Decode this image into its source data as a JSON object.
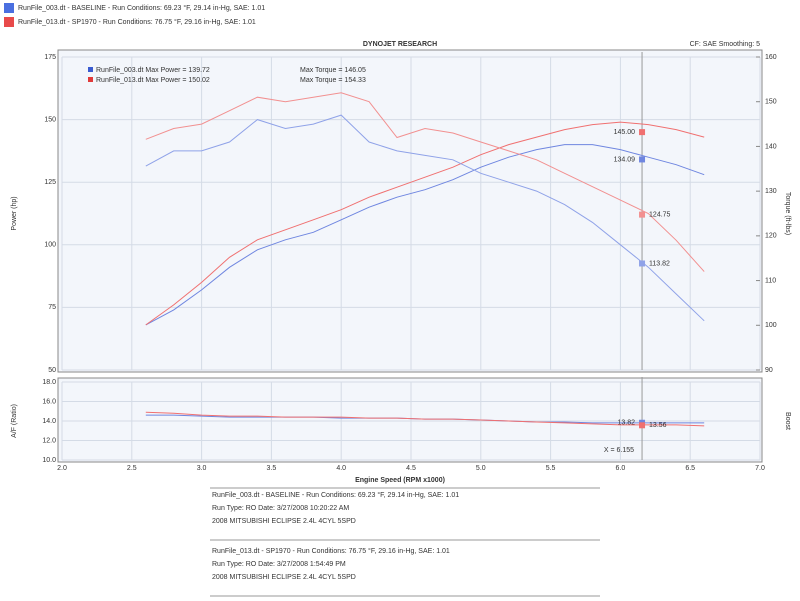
{
  "header": {
    "runs": [
      {
        "color": "#4a6fe0",
        "text": "RunFile_003.dt - BASELINE  -  Run Conditions: 69.23 °F, 29.14 in-Hg, SAE: 1.01"
      },
      {
        "color": "#e84a4a",
        "text": "RunFile_013.dt - SP1970  -  Run Conditions: 76.75 °F, 29.16 in-Hg, SAE: 1.01"
      }
    ]
  },
  "chart_data": [
    {
      "type": "line",
      "title": "DYNOJET RESEARCH",
      "subtitle": "CF: SAE  Smoothing: 5",
      "y_label": "Power (hp)",
      "y2_label": "Torque (ft-lbs)",
      "x": [
        2.6,
        2.8,
        3.0,
        3.2,
        3.4,
        3.6,
        3.8,
        4.0,
        4.2,
        4.4,
        4.6,
        4.8,
        5.0,
        5.2,
        5.4,
        5.6,
        5.8,
        6.0,
        6.2,
        6.4,
        6.6
      ],
      "xlim": [
        2,
        7
      ],
      "ylim": [
        50,
        175
      ],
      "yticks": [
        50,
        75,
        100,
        125,
        150,
        175
      ],
      "y2lim": [
        90,
        160
      ],
      "y2ticks": [
        90,
        100,
        110,
        120,
        130,
        140,
        150,
        160
      ],
      "grid": true,
      "cursor_x": 6.155,
      "legend": [
        {
          "color": "#3a5bd0",
          "power": "RunFile_003.dt Max Power = 139.72",
          "torque": "Max Torque = 146.05"
        },
        {
          "color": "#e03a3a",
          "power": "RunFile_013.dt Max Power = 150.02",
          "torque": "Max Torque = 154.33"
        }
      ],
      "series": [
        {
          "color": "#6f86e0",
          "values": [
            68,
            74,
            82,
            91,
            98,
            102,
            105,
            110,
            115,
            119,
            122,
            126,
            131,
            135,
            138,
            140,
            140,
            138,
            135,
            132,
            128
          ],
          "cursor_value": 134.09
        },
        {
          "color": "#f07070",
          "values": [
            68,
            76,
            85,
            95,
            102,
            106,
            110,
            114,
            119,
            123,
            127,
            131,
            136,
            140,
            143,
            146,
            148,
            149,
            148,
            146,
            143
          ],
          "cursor_value": 145,
          "cursor_label": "145.00"
        },
        {
          "color": "#8fa2e8",
          "axis": "y2",
          "values": [
            135.6,
            139,
            139,
            141,
            146,
            144,
            145,
            147,
            141,
            139,
            138,
            137,
            134,
            132,
            130,
            127,
            123,
            118,
            113,
            107,
            101
          ],
          "cursor_value": 113.82
        },
        {
          "color": "#f29090",
          "axis": "y2",
          "values": [
            141.6,
            144,
            145,
            148,
            151,
            150,
            151,
            152,
            150,
            142,
            144,
            143,
            141,
            139,
            137,
            134,
            131,
            128,
            125,
            119,
            112
          ],
          "cursor_value": 124.75
        }
      ]
    },
    {
      "type": "line",
      "x_label": "Engine Speed (RPM x1000)",
      "y_label": "A/F (Ratio)",
      "y2_label": "Boost",
      "x": [
        2.6,
        2.8,
        3.0,
        3.2,
        3.4,
        3.6,
        3.8,
        4.0,
        4.2,
        4.4,
        4.6,
        4.8,
        5.0,
        5.2,
        5.4,
        5.6,
        5.8,
        6.0,
        6.2,
        6.4,
        6.6
      ],
      "xlim": [
        2,
        7
      ],
      "xticks": [
        {
          "value": 2,
          "label": "2.0"
        },
        2.5,
        {
          "value": 3,
          "label": "3.0"
        },
        3.5,
        {
          "value": 4,
          "label": "4.0"
        },
        4.5,
        {
          "value": 5,
          "label": "5.0"
        },
        5.5,
        {
          "value": 6,
          "label": "6.0"
        },
        6.5,
        {
          "value": 7,
          "label": "7.0"
        }
      ],
      "ylim": [
        10,
        18
      ],
      "yticks": [
        {
          "value": 10,
          "label": "10.0"
        },
        {
          "value": 12,
          "label": "12.0"
        },
        {
          "value": 14,
          "label": "14.0"
        },
        {
          "value": 16,
          "label": "16.0"
        },
        {
          "value": 18,
          "label": "18.0"
        }
      ],
      "grid": true,
      "cursor_x": 6.155,
      "cursor_label": "X = 6.155",
      "series": [
        {
          "color": "#6f86e0",
          "values": [
            14.6,
            14.6,
            14.5,
            14.4,
            14.4,
            14.4,
            14.4,
            14.3,
            14.3,
            14.3,
            14.2,
            14.2,
            14.1,
            14.0,
            13.9,
            13.9,
            13.8,
            13.8,
            13.8,
            13.8,
            13.8
          ],
          "cursor_value": 13.82
        },
        {
          "color": "#f07070",
          "values": [
            14.9,
            14.8,
            14.6,
            14.5,
            14.5,
            14.4,
            14.4,
            14.4,
            14.3,
            14.3,
            14.2,
            14.2,
            14.1,
            14.0,
            13.9,
            13.8,
            13.7,
            13.6,
            13.6,
            13.6,
            13.5
          ],
          "cursor_value": 13.56
        }
      ]
    }
  ],
  "footer": {
    "runs": [
      {
        "color": "#3a5bd0",
        "lines": [
          "RunFile_003.dt - BASELINE  -  Run Conditions: 69.23 °F, 29.14 in-Hg, SAE: 1.01",
          "Run Type: RO  Date: 3/27/2008 10:20:22 AM",
          "2008 MITSUBISHI ECLIPSE 2.4L 4CYL 5SPD"
        ]
      },
      {
        "color": "#e03a3a",
        "lines": [
          "RunFile_013.dt - SP1970  -  Run Conditions: 76.75 °F, 29.16 in-Hg, SAE: 1.01",
          "Run Type: RO  Date: 3/27/2008 1:54:49 PM",
          "2008 MITSUBISHI ECLIPSE 2.4L 4CYL 5SPD"
        ]
      }
    ]
  }
}
